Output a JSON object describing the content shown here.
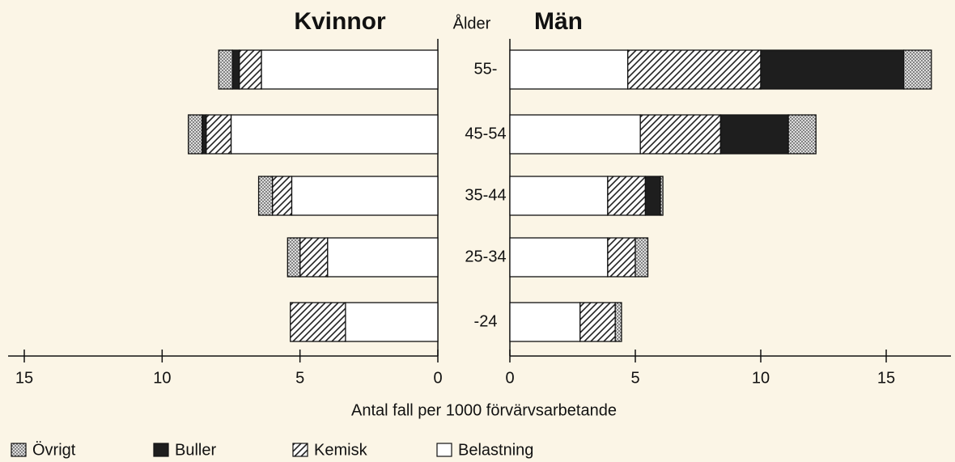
{
  "chart_data": {
    "type": "pyramid",
    "category_label": "Ålder",
    "categories": [
      "55-",
      "45-54",
      "35-44",
      "25-34",
      "-24"
    ],
    "x_label": "Antal fall per 1000 förvärvsarbetande",
    "legend": [
      {
        "name": "Belastning",
        "pattern": "none"
      },
      {
        "name": "Kemisk",
        "pattern": "hatch"
      },
      {
        "name": "Buller",
        "pattern": "solid"
      },
      {
        "name": "Övrigt",
        "pattern": "dots"
      }
    ],
    "panels": [
      {
        "title": "Kvinnor",
        "xlim": [
          15,
          0
        ],
        "xticks": [
          15,
          10,
          5,
          0
        ],
        "series": [
          {
            "values": [
              6.4,
              7.5,
              5.3,
              4.0,
              3.35
            ]
          },
          {
            "values": [
              0.8,
              0.9,
              0.7,
              1.0,
              2.0
            ]
          },
          {
            "values": [
              0.25,
              0.15,
              0,
              0,
              0
            ]
          },
          {
            "values": [
              0.5,
              0.5,
              0.5,
              0.45,
              0
            ]
          }
        ]
      },
      {
        "title": "Män",
        "xlim": [
          0,
          15
        ],
        "xticks": [
          0,
          5,
          10,
          15
        ],
        "series": [
          {
            "values": [
              4.7,
              5.2,
              3.9,
              3.9,
              2.8
            ]
          },
          {
            "values": [
              5.3,
              3.2,
              1.5,
              1.1,
              1.4
            ]
          },
          {
            "values": [
              5.7,
              2.7,
              0.6,
              0,
              0
            ]
          },
          {
            "values": [
              1.1,
              1.1,
              0.1,
              0.5,
              0.25
            ]
          }
        ]
      }
    ]
  }
}
